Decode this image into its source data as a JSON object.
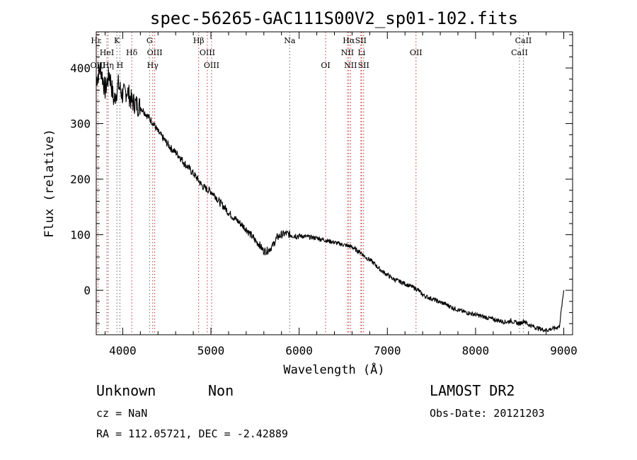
{
  "chart_data": {
    "type": "line",
    "title": "spec-56265-GAC111S00V2_sp01-102.fits",
    "xlabel": "Wavelength (Å)",
    "ylabel": "Flux (relative)",
    "xlim": [
      3700,
      9100
    ],
    "ylim": [
      -80,
      465
    ],
    "xticks": [
      4000,
      5000,
      6000,
      7000,
      8000,
      9000
    ],
    "xtick_labels": [
      "4000",
      "5000",
      "6000",
      "7000",
      "8000",
      "9000"
    ],
    "yticks": [
      0,
      100,
      200,
      300,
      400
    ],
    "ytick_labels": [
      "0",
      "100",
      "200",
      "300",
      "400"
    ],
    "grid": false,
    "series": [
      {
        "x": [
          3700,
          3750,
          3800,
          3850,
          3900,
          3950,
          4000,
          4050,
          4100,
          4150,
          4200,
          4250,
          4300,
          4350,
          4400,
          4450,
          4500,
          4550,
          4600,
          4650,
          4700,
          4750,
          4800,
          4850,
          4900,
          4950,
          5000,
          5050,
          5100,
          5150,
          5200,
          5250,
          5300,
          5350,
          5400,
          5450,
          5500,
          5550,
          5600,
          5650,
          5700,
          5750,
          5800,
          5850,
          5900,
          5950,
          6000,
          6050,
          6100,
          6150,
          6200,
          6250,
          6300,
          6350,
          6400,
          6450,
          6500,
          6550,
          6600,
          6650,
          6700,
          6750,
          6800,
          6850,
          6900,
          6950,
          7000,
          7050,
          7100,
          7150,
          7200,
          7250,
          7300,
          7350,
          7400,
          7450,
          7500,
          7550,
          7600,
          7650,
          7700,
          7750,
          7800,
          7850,
          7900,
          7950,
          8000,
          8050,
          8100,
          8150,
          8200,
          8250,
          8300,
          8350,
          8400,
          8450,
          8500,
          8550,
          8600,
          8650,
          8700,
          8750,
          8800,
          8850,
          8900,
          8950,
          9000
        ],
        "y": [
          380,
          400,
          360,
          390,
          340,
          370,
          350,
          360,
          340,
          335,
          330,
          320,
          310,
          300,
          285,
          275,
          265,
          255,
          248,
          240,
          228,
          220,
          210,
          200,
          188,
          182,
          178,
          170,
          158,
          150,
          140,
          132,
          125,
          118,
          110,
          100,
          90,
          82,
          70,
          72,
          80,
          95,
          100,
          102,
          100,
          99,
          98,
          97,
          96,
          95,
          94,
          92,
          90,
          88,
          86,
          84,
          82,
          80,
          78,
          72,
          68,
          60,
          55,
          48,
          40,
          33,
          28,
          22,
          18,
          15,
          12,
          8,
          5,
          0,
          -8,
          -12,
          -15,
          -18,
          -22,
          -24,
          -28,
          -32,
          -35,
          -38,
          -40,
          -42,
          -44,
          -46,
          -48,
          -50,
          -52,
          -54,
          -56,
          -57,
          -55,
          -58,
          -60,
          -55,
          -62,
          -65,
          -68,
          -70,
          -72,
          -70,
          -68,
          -65,
          0
        ]
      }
    ],
    "lines": [
      {
        "label": "Hε",
        "wave": 3700,
        "row": 0,
        "color": "#666666"
      },
      {
        "label": "K",
        "wave": 3934,
        "row": 0,
        "color": "#666666"
      },
      {
        "label": "G",
        "wave": 4304,
        "row": 0,
        "color": "#666666"
      },
      {
        "label": "Hβ",
        "wave": 4861,
        "row": 0,
        "color": "#c53030"
      },
      {
        "label": "Na",
        "wave": 5893,
        "row": 0,
        "color": "#666666"
      },
      {
        "label": "Hα",
        "wave": 6563,
        "row": 0,
        "color": "#c53030"
      },
      {
        "label": "SII",
        "wave": 6700,
        "row": 0,
        "color": "#c53030"
      },
      {
        "label": "CaII",
        "wave": 8542,
        "row": 0,
        "color": "#666666"
      },
      {
        "label": "HeI",
        "wave": 3820,
        "row": 1,
        "color": "#666666"
      },
      {
        "label": "Hδ",
        "wave": 4102,
        "row": 1,
        "color": "#c53030"
      },
      {
        "label": "OIII",
        "wave": 4363,
        "row": 1,
        "color": "#c53030"
      },
      {
        "label": "OIII",
        "wave": 4959,
        "row": 1,
        "color": "#c53030"
      },
      {
        "label": "NII",
        "wave": 6548,
        "row": 1,
        "color": "#c53030"
      },
      {
        "label": "Li",
        "wave": 6708,
        "row": 1,
        "color": "#c53030"
      },
      {
        "label": "OII",
        "wave": 7325,
        "row": 1,
        "color": "#c53030"
      },
      {
        "label": "CaII",
        "wave": 8498,
        "row": 1,
        "color": "#666666"
      },
      {
        "label": "OIII",
        "wave": 3720,
        "row": 2,
        "color": "#c53030"
      },
      {
        "label": "Hη",
        "wave": 3835,
        "row": 2,
        "color": "#c53030"
      },
      {
        "label": "H",
        "wave": 3968,
        "row": 2,
        "color": "#666666"
      },
      {
        "label": "Hγ",
        "wave": 4340,
        "row": 2,
        "color": "#c53030"
      },
      {
        "label": "OIII",
        "wave": 5007,
        "row": 2,
        "color": "#c53030"
      },
      {
        "label": "OI",
        "wave": 6300,
        "row": 2,
        "color": "#c53030"
      },
      {
        "label": "NII",
        "wave": 6583,
        "row": 2,
        "color": "#c53030"
      },
      {
        "label": "SII",
        "wave": 6731,
        "row": 2,
        "color": "#c53030"
      }
    ]
  },
  "footer": {
    "class_label": "Unknown",
    "subclass_label": "Non",
    "cz": "cz = NaN",
    "coords": "RA = 112.05721, DEC =  -2.42889",
    "survey": "LAMOST DR2",
    "obs_date": "Obs-Date: 20121203"
  }
}
